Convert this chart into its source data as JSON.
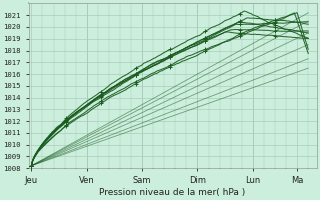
{
  "xlabel": "Pression niveau de la mer( hPa )",
  "bg_color": "#cceedd",
  "grid_color": "#aaccbb",
  "line_color": "#1a5c20",
  "x_ticks": [
    0,
    1,
    2,
    3,
    4,
    4.8
  ],
  "x_tick_labels": [
    "Jeu",
    "Ven",
    "Sam",
    "Dim",
    "Lun",
    "Ma"
  ],
  "ylim": [
    1008,
    1022
  ],
  "xlim": [
    -0.05,
    5.15
  ],
  "yticks": [
    1008,
    1009,
    1010,
    1011,
    1012,
    1013,
    1014,
    1015,
    1016,
    1017,
    1018,
    1019,
    1020,
    1021
  ]
}
